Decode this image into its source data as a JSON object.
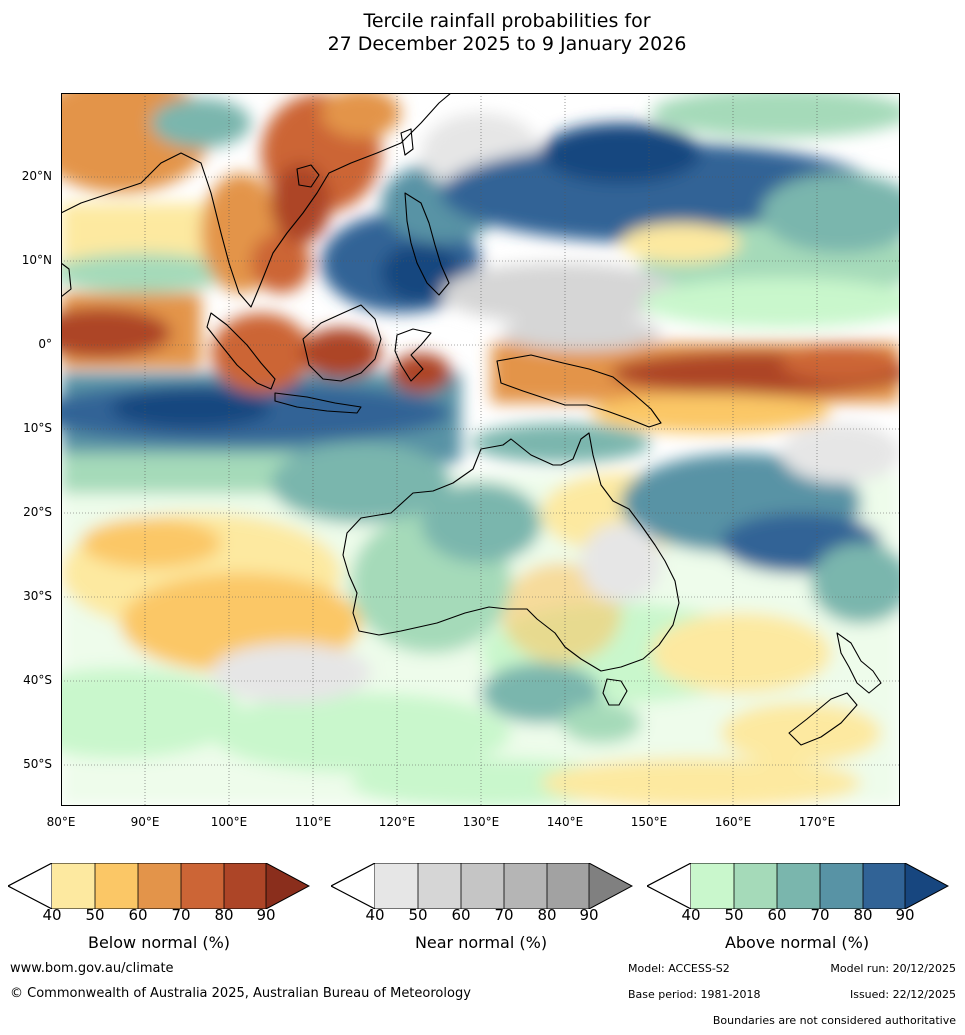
{
  "title": {
    "line1": "Tercile rainfall probabilities for",
    "line2": "27 December 2025 to 9 January 2026"
  },
  "map": {
    "lat_labels": [
      "20°N",
      "10°N",
      "0°",
      "10°S",
      "20°S",
      "30°S",
      "40°S",
      "50°S"
    ],
    "lon_labels": [
      "80°E",
      "90°E",
      "100°E",
      "110°E",
      "120°E",
      "130°E",
      "140°E",
      "150°E",
      "160°E",
      "170°E"
    ],
    "lon_range": [
      80,
      180
    ],
    "lat_range": [
      -55,
      30
    ]
  },
  "legend": {
    "ticks": [
      "40",
      "50",
      "60",
      "70",
      "80",
      "90"
    ],
    "below": {
      "title": "Below normal (%)",
      "colors": [
        "#fde9a0",
        "#fbc766",
        "#e3944a",
        "#cc6536",
        "#ad4527",
        "#8a2e1c"
      ]
    },
    "near": {
      "title": "Near normal (%)",
      "colors": [
        "#e6e6e6",
        "#d6d6d6",
        "#c5c5c5",
        "#b5b5b5",
        "#a2a2a2",
        "#808080"
      ]
    },
    "above": {
      "title": "Above normal (%)",
      "colors": [
        "#c9f7cc",
        "#a5dab9",
        "#7ab6ad",
        "#5893a5",
        "#316396",
        "#17467f"
      ]
    }
  },
  "footer": {
    "website": "www.bom.gov.au/climate",
    "copyright": "© Commonwealth of Australia 2025, Australian Bureau of Meteorology",
    "model": "Model: ACCESS-S2",
    "model_run": "Model run: 20/12/2025",
    "base_period": "Base period: 1981-2018",
    "issued": "Issued: 22/12/2025",
    "disclaimer": "Boundaries are not considered authoritative"
  }
}
